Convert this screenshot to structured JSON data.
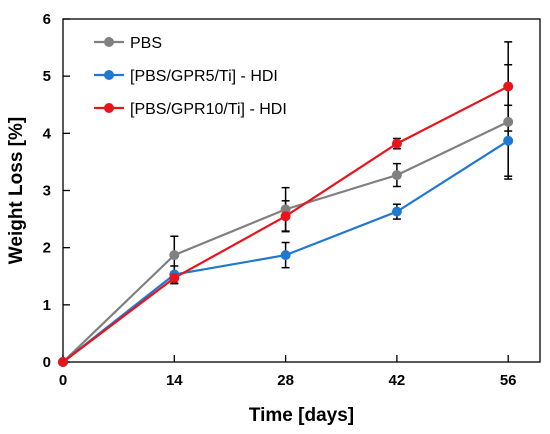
{
  "chart_data": {
    "type": "line",
    "title": "",
    "xlabel": "Time [days]",
    "ylabel": "Weight Loss [%]",
    "xlim": [
      0,
      60
    ],
    "ylim": [
      0,
      6
    ],
    "xticks": [
      0,
      14,
      28,
      42,
      56
    ],
    "yticks": [
      0,
      1,
      2,
      3,
      4,
      5,
      6
    ],
    "grid": false,
    "legend_position": "top-left",
    "series": [
      {
        "name": "PBS",
        "color": "#808080",
        "x": [
          0,
          14,
          28,
          42,
          56
        ],
        "values": [
          0,
          1.87,
          2.67,
          3.27,
          4.2
        ],
        "errors": [
          0,
          0.33,
          0.38,
          0.2,
          1.0
        ]
      },
      {
        "name": "[PBS/GPR5/Ti] - HDI",
        "color": "#1f78d1",
        "x": [
          0,
          14,
          28,
          42,
          56
        ],
        "values": [
          0,
          1.53,
          1.87,
          2.63,
          3.87
        ],
        "errors": [
          0,
          0.15,
          0.22,
          0.13,
          0.62
        ]
      },
      {
        "name": "[PBS/GPR10/Ti] - HDI",
        "color": "#e8141c",
        "x": [
          0,
          14,
          28,
          42,
          56
        ],
        "values": [
          0,
          1.47,
          2.55,
          3.82,
          4.82
        ],
        "errors": [
          0,
          0.1,
          0.27,
          0.09,
          0.78
        ]
      }
    ]
  }
}
